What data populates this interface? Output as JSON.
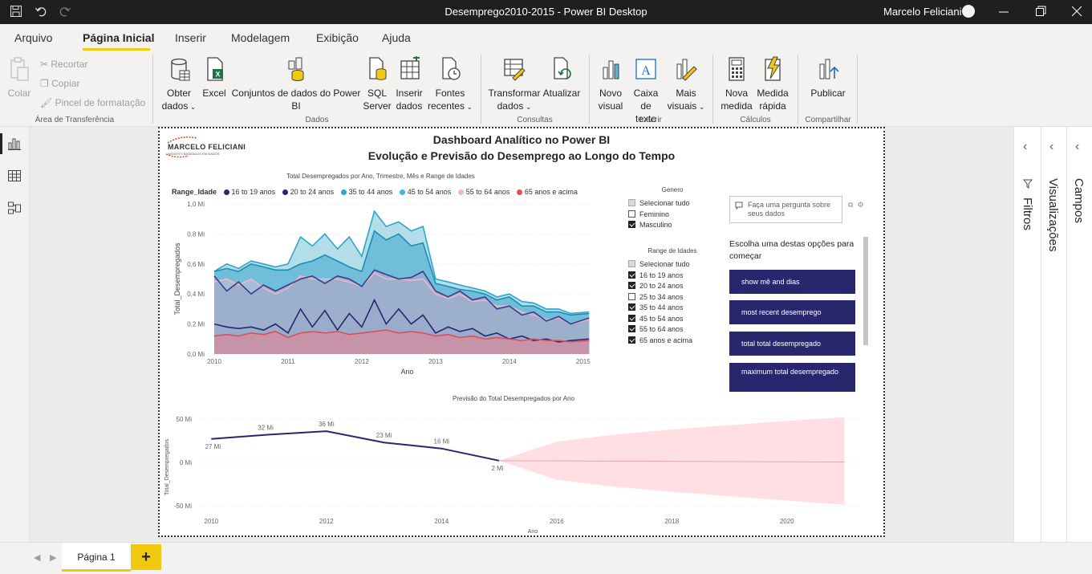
{
  "window": {
    "title": "Desemprego2010-2015 - Power BI Desktop",
    "user": "Marcelo Feliciani"
  },
  "menu": {
    "tabs": [
      "Arquivo",
      "Página Inicial",
      "Inserir",
      "Modelagem",
      "Exibição",
      "Ajuda"
    ]
  },
  "ribbon": {
    "clipboard": {
      "paste": "Colar",
      "cut": "Recortar",
      "copy": "Copiar",
      "format_painter": "Pincel de formatação",
      "group": "Área de Transferência"
    },
    "data": {
      "get_data_1": "Obter",
      "get_data_2": "dados",
      "excel": "Excel",
      "datasets_1": "Conjuntos de dados do Power",
      "datasets_2": "BI",
      "sql_1": "SQL",
      "sql_2": "Server",
      "enter_1": "Inserir",
      "enter_2": "dados",
      "recent_1": "Fontes",
      "recent_2": "recentes",
      "group": "Dados"
    },
    "queries": {
      "transform_1": "Transformar",
      "transform_2": "dados",
      "refresh": "Atualizar",
      "group": "Consultas"
    },
    "insert": {
      "newvisual_1": "Novo",
      "newvisual_2": "visual",
      "textbox_1": "Caixa de",
      "textbox_2": "texto",
      "more_1": "Mais",
      "more_2": "visuais",
      "group": "Inserir"
    },
    "calc": {
      "measure_1": "Nova",
      "measure_2": "medida",
      "quick_1": "Medida",
      "quick_2": "rápida",
      "group": "Cálculos"
    },
    "share": {
      "publish": "Publicar",
      "group": "Compartilhar"
    }
  },
  "panes": {
    "filters": "Filtros",
    "visualizations": "Visualizações",
    "fields": "Campos"
  },
  "pages": {
    "current": "Página 1",
    "add": "+"
  },
  "report": {
    "title_line1": "Dashboard Analítico no Power BI",
    "title_line2": "Evolução e Previsão do Desemprego ao Longo do Tempo",
    "logo": "MARCELO FELICIANI",
    "logo_sub": "INSIGHTS BASEADOS EM DADOS"
  },
  "slicers": {
    "genero": {
      "title": "Genero",
      "items": [
        {
          "label": "Selecionar tudo",
          "state": "part"
        },
        {
          "label": "Feminino",
          "state": "off"
        },
        {
          "label": "Masculino",
          "state": "on"
        }
      ]
    },
    "range": {
      "title": "Range de Idades",
      "items": [
        {
          "label": "Selecionar tudo",
          "state": "part"
        },
        {
          "label": "16 to 19 anos",
          "state": "on"
        },
        {
          "label": "20 to 24 anos",
          "state": "on"
        },
        {
          "label": "25 to 34 anos",
          "state": "off"
        },
        {
          "label": "35 to 44 anos",
          "state": "on"
        },
        {
          "label": "45 to 54 anos",
          "state": "on"
        },
        {
          "label": "55 to 64 anos",
          "state": "on"
        },
        {
          "label": "65 anos e acima",
          "state": "on"
        }
      ]
    }
  },
  "qa": {
    "placeholder": "Faça uma pergunta sobre seus dados",
    "prompt": "Escolha uma destas opções para começar",
    "suggestions": [
      "show mê and dias",
      "most recent desemprego",
      "total total desempregado",
      "maximum total desempregado"
    ]
  },
  "chart_data": [
    {
      "type": "area",
      "title": "Total Desempregados por Ano, Trimestre, Mês e Range de Idades",
      "xlabel": "Ano",
      "ylabel": "Total_Desempregados",
      "legend_title": "Range_Idade",
      "legend_position": "top",
      "x_ticks": [
        "2010",
        "2011",
        "2012",
        "2013",
        "2014",
        "2015"
      ],
      "y_ticks": [
        "0,0 Mi",
        "0,2 Mi",
        "0,4 Mi",
        "0,6 Mi",
        "0,8 Mi",
        "1,0 Mi"
      ],
      "ylim": [
        0,
        1.0
      ],
      "x_range": [
        2010,
        2015.1
      ],
      "series": [
        {
          "name": "16 to 19 anos",
          "color": "#28276e",
          "stroke": "#28276e",
          "fill": "#9aabc9",
          "x": [
            2010,
            2010.17,
            2010.33,
            2010.5,
            2010.67,
            2010.83,
            2011,
            2011.17,
            2011.33,
            2011.5,
            2011.67,
            2011.83,
            2012,
            2012.17,
            2012.33,
            2012.5,
            2012.67,
            2012.83,
            2013,
            2013.17,
            2013.33,
            2013.5,
            2013.67,
            2013.83,
            2014,
            2014.17,
            2014.33,
            2014.5,
            2014.67,
            2014.83,
            2015.08
          ],
          "values": [
            0.2,
            0.18,
            0.17,
            0.18,
            0.16,
            0.2,
            0.14,
            0.3,
            0.18,
            0.29,
            0.16,
            0.27,
            0.18,
            0.36,
            0.2,
            0.3,
            0.2,
            0.26,
            0.14,
            0.18,
            0.15,
            0.17,
            0.12,
            0.14,
            0.1,
            0.12,
            0.09,
            0.1,
            0.08,
            0.09,
            0.1
          ]
        },
        {
          "name": "20 to 24 anos",
          "color": "#28276e",
          "stroke": "#3d3b8e",
          "fill": "#9aabc9",
          "x": [
            2010,
            2010.17,
            2010.33,
            2010.5,
            2010.67,
            2010.83,
            2011,
            2011.17,
            2011.33,
            2011.5,
            2011.67,
            2011.83,
            2012,
            2012.17,
            2012.33,
            2012.5,
            2012.67,
            2012.83,
            2013,
            2013.17,
            2013.33,
            2013.5,
            2013.67,
            2013.83,
            2014,
            2014.17,
            2014.33,
            2014.5,
            2014.67,
            2014.83,
            2015.08
          ],
          "values": [
            0.52,
            0.42,
            0.48,
            0.4,
            0.46,
            0.42,
            0.46,
            0.5,
            0.52,
            0.47,
            0.52,
            0.5,
            0.45,
            0.56,
            0.53,
            0.5,
            0.51,
            0.55,
            0.42,
            0.38,
            0.42,
            0.36,
            0.38,
            0.3,
            0.32,
            0.26,
            0.28,
            0.22,
            0.25,
            0.2,
            0.24
          ]
        },
        {
          "name": "35 to 44 anos",
          "color": "#2ba7c9",
          "stroke": "#2ba7c9",
          "fill": "#9ad1e2",
          "x": [
            2010,
            2010.17,
            2010.33,
            2010.5,
            2010.67,
            2010.83,
            2011,
            2011.17,
            2011.33,
            2011.5,
            2011.67,
            2011.83,
            2012,
            2012.17,
            2012.33,
            2012.5,
            2012.67,
            2012.83,
            2013,
            2013.17,
            2013.33,
            2013.5,
            2013.67,
            2013.83,
            2014,
            2014.17,
            2014.33,
            2014.5,
            2014.67,
            2014.83,
            2015.08
          ],
          "values": [
            0.55,
            0.6,
            0.57,
            0.62,
            0.6,
            0.58,
            0.6,
            0.78,
            0.72,
            0.8,
            0.7,
            0.78,
            0.65,
            0.95,
            0.85,
            0.88,
            0.82,
            0.85,
            0.5,
            0.48,
            0.46,
            0.44,
            0.42,
            0.38,
            0.4,
            0.35,
            0.34,
            0.3,
            0.3,
            0.27,
            0.28
          ]
        },
        {
          "name": "45 to 54 anos",
          "color": "#3cbbd6",
          "stroke": "#1b8fb3",
          "fill": "#5ab3d4",
          "x": [
            2010,
            2010.17,
            2010.33,
            2010.5,
            2010.67,
            2010.83,
            2011,
            2011.17,
            2011.33,
            2011.5,
            2011.67,
            2011.83,
            2012,
            2012.17,
            2012.33,
            2012.5,
            2012.67,
            2012.83,
            2013,
            2013.17,
            2013.33,
            2013.5,
            2013.67,
            2013.83,
            2014,
            2014.17,
            2014.33,
            2014.5,
            2014.67,
            2014.83,
            2015.08
          ],
          "values": [
            0.55,
            0.57,
            0.55,
            0.6,
            0.58,
            0.56,
            0.56,
            0.6,
            0.62,
            0.66,
            0.62,
            0.58,
            0.55,
            0.82,
            0.76,
            0.8,
            0.72,
            0.74,
            0.47,
            0.45,
            0.43,
            0.42,
            0.4,
            0.36,
            0.38,
            0.32,
            0.32,
            0.28,
            0.28,
            0.26,
            0.27
          ]
        },
        {
          "name": "55 to 64 anos",
          "color": "#f2b5c6",
          "stroke": "#f2b5c6",
          "fill": "#b4bfd6",
          "x": [
            2010,
            2010.17,
            2010.33,
            2010.5,
            2010.67,
            2010.83,
            2011,
            2011.17,
            2011.33,
            2011.5,
            2011.67,
            2011.83,
            2012,
            2012.17,
            2012.33,
            2012.5,
            2012.67,
            2012.83,
            2013,
            2013.17,
            2013.33,
            2013.5,
            2013.67,
            2013.83,
            2014,
            2014.17,
            2014.33,
            2014.5,
            2014.67,
            2014.83,
            2015.08
          ],
          "values": [
            0.48,
            0.5,
            0.46,
            0.5,
            0.44,
            0.4,
            0.44,
            0.52,
            0.5,
            0.5,
            0.5,
            0.48,
            0.45,
            0.54,
            0.5,
            0.5,
            0.49,
            0.5,
            0.4,
            0.37,
            0.4,
            0.35,
            0.36,
            0.32,
            0.32,
            0.28,
            0.26,
            0.23,
            0.24,
            0.2,
            0.23
          ]
        },
        {
          "name": "65 anos e acima",
          "color": "#e04f57",
          "stroke": "#e04f57",
          "fill": "#d48b9c",
          "x": [
            2010,
            2010.17,
            2010.33,
            2010.5,
            2010.67,
            2010.83,
            2011,
            2011.17,
            2011.33,
            2011.5,
            2011.67,
            2011.83,
            2012,
            2012.17,
            2012.33,
            2012.5,
            2012.67,
            2012.83,
            2013,
            2013.17,
            2013.33,
            2013.5,
            2013.67,
            2013.83,
            2014,
            2014.17,
            2014.33,
            2014.5,
            2014.67,
            2014.83,
            2015.08
          ],
          "values": [
            0.12,
            0.13,
            0.12,
            0.14,
            0.13,
            0.15,
            0.11,
            0.14,
            0.15,
            0.14,
            0.15,
            0.13,
            0.14,
            0.15,
            0.16,
            0.14,
            0.15,
            0.14,
            0.12,
            0.13,
            0.11,
            0.12,
            0.1,
            0.11,
            0.1,
            0.09,
            0.1,
            0.09,
            0.09,
            0.08,
            0.09
          ]
        }
      ]
    },
    {
      "type": "line",
      "title": "Previsão do Total Desempregados por Ano",
      "xlabel": "Ano",
      "ylabel": "Total_Desempregados",
      "x_ticks": [
        "2010",
        "2012",
        "2014",
        "2016",
        "2018",
        "2020"
      ],
      "y_ticks": [
        "-50 Mi",
        "0 Mi",
        "50 Mi"
      ],
      "ylim": [
        -50,
        50
      ],
      "xlim": [
        2009.8,
        2021.3
      ],
      "series": [
        {
          "x": [
            2010,
            2011,
            2012,
            2013,
            2014,
            2015
          ],
          "values": [
            27,
            32,
            36,
            23,
            16,
            2
          ],
          "labels": [
            "27 Mi",
            "32 Mi",
            "36 Mi",
            "23 Mi",
            "16 Mi",
            "2 Mi"
          ],
          "color": "#28276e"
        }
      ],
      "forecast": {
        "x": [
          2015,
          2016,
          2017,
          2018,
          2019,
          2020,
          2021
        ],
        "upper": [
          2,
          24,
          32,
          38,
          43,
          48,
          52
        ],
        "lower": [
          2,
          -20,
          -28,
          -34,
          -39,
          -44,
          -49
        ],
        "color": "#ffdfe3"
      }
    }
  ]
}
